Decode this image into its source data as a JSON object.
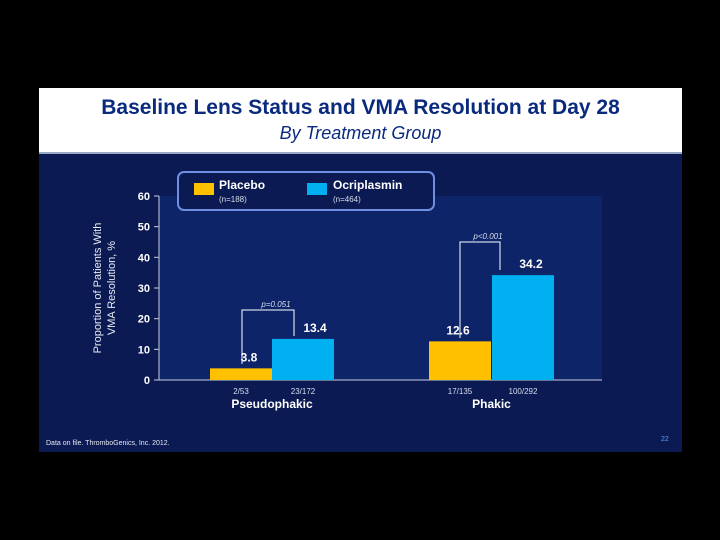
{
  "slide": {
    "title": "Baseline Lens Status and VMA Resolution at Day 28",
    "subtitle": "By Treatment Group",
    "footnote": "Data on file. ThromboGenics, Inc. 2012.",
    "page_number": "22"
  },
  "colors": {
    "placebo": "#ffc000",
    "ocriplasmin": "#00b0f0",
    "plot_bg": "#0e2468",
    "text": "#ffffff"
  },
  "chart_data": {
    "type": "bar",
    "title": "Baseline Lens Status and VMA Resolution at Day 28",
    "subtitle": "By Treatment Group",
    "ylabel": [
      "Proportion of Patients With",
      "VMA Resolution, %"
    ],
    "xlabel": "",
    "ylim": [
      0,
      60
    ],
    "yticks": [
      0,
      10,
      20,
      30,
      40,
      50,
      60
    ],
    "categories": [
      "Pseudophakic",
      "Phakic"
    ],
    "series": [
      {
        "name": "Placebo",
        "n_label": "(n=188)",
        "values": [
          3.8,
          12.6
        ],
        "counts": [
          "2/53",
          "17/135"
        ]
      },
      {
        "name": "Ocriplasmin",
        "n_label": "(n=464)",
        "values": [
          13.4,
          34.2
        ],
        "counts": [
          "23/172",
          "100/292"
        ]
      }
    ],
    "p_values": [
      "p=0.051",
      "p<0.001"
    ],
    "legend_position": "top-left"
  }
}
